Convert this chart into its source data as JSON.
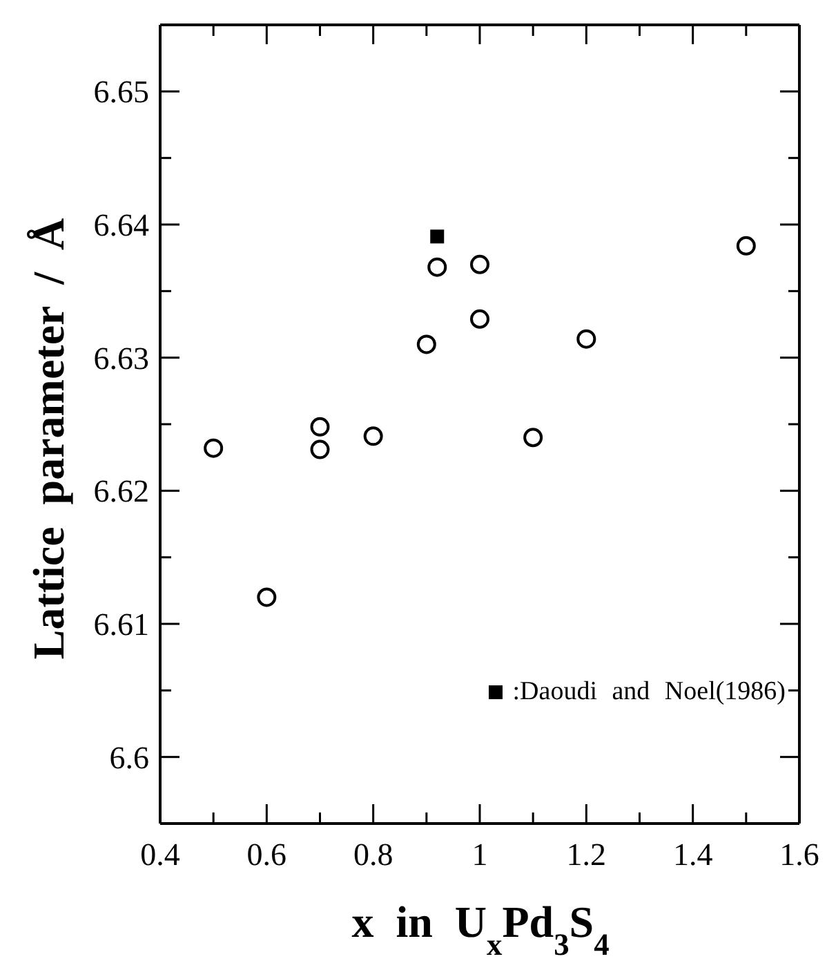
{
  "chart_data": {
    "type": "scatter",
    "xlabel": "x in U$_{x}$Pd$_{3}$S$_{4}$",
    "ylabel": "Lattice parameter / Å",
    "xlim": [
      0.4,
      1.6
    ],
    "ylim": [
      6.595,
      6.655
    ],
    "xticks": [
      0.4,
      {
        "value": 0.5,
        "label": null
      },
      0.6,
      {
        "value": 0.7,
        "label": null
      },
      0.8,
      {
        "value": 0.9,
        "label": null
      },
      1,
      {
        "value": 1.1,
        "label": null
      },
      1.2,
      {
        "value": 1.3,
        "label": null
      },
      1.4,
      {
        "value": 1.5,
        "label": null
      },
      1.6
    ],
    "yticks": [
      6.6,
      {
        "value": 6.605,
        "label": null
      },
      6.61,
      {
        "value": 6.615,
        "label": null
      },
      6.62,
      {
        "value": 6.625,
        "label": null
      },
      6.63,
      {
        "value": 6.635,
        "label": null
      },
      6.64,
      {
        "value": 6.645,
        "label": null
      },
      6.65
    ],
    "legend": "bottom right",
    "series": [
      {
        "color": "#000000",
        "marker": "circle",
        "x": [
          0.5,
          0.6,
          0.7,
          0.7,
          0.8,
          0.9,
          0.92,
          1,
          1,
          1.1,
          1.2,
          1.5
        ],
        "values": [
          6.6232,
          6.612,
          6.6248,
          6.6231,
          6.6241,
          6.631,
          6.6368,
          6.637,
          6.6329,
          6.624,
          6.6314,
          6.6384
        ]
      },
      {
        "name": ":Daoudi and Noel(1986)",
        "color": "#000000",
        "marker": "square",
        "x": [
          0.92
        ],
        "values": [
          6.6391
        ]
      }
    ]
  }
}
